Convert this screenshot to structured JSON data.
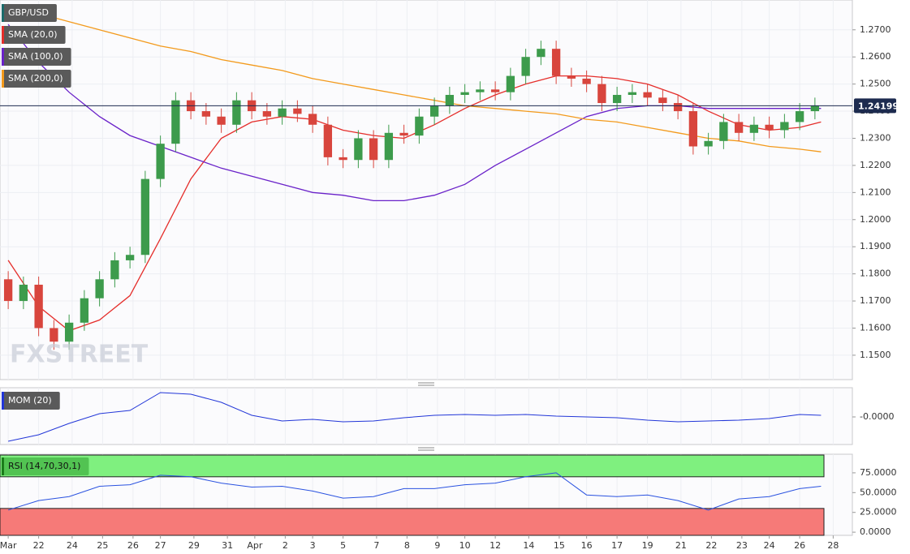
{
  "chart_data": [
    {
      "type": "candlestick",
      "symbol": "GBP/USD",
      "watermark": "FXSTREET",
      "x": [
        0,
        0.5,
        1,
        1.5,
        2,
        2.5,
        3,
        3.5,
        4,
        4.5,
        5,
        5.5,
        6,
        6.5,
        7,
        7.5,
        8,
        8.5,
        9,
        9.5,
        10,
        10.5,
        11,
        11.5,
        12,
        12.5,
        13,
        13.5,
        14,
        14.5,
        15,
        15.5,
        16,
        16.5,
        17,
        17.5,
        18,
        18.5,
        19,
        19.5,
        20,
        20.5,
        21,
        21.5,
        22,
        22.5,
        23,
        23.5,
        24,
        24.5,
        25,
        25.5,
        26,
        26.5
      ],
      "open": [
        1.178,
        1.17,
        1.176,
        1.16,
        1.155,
        1.162,
        1.171,
        1.178,
        1.185,
        1.187,
        1.215,
        1.228,
        1.244,
        1.24,
        1.238,
        1.235,
        1.244,
        1.24,
        1.238,
        1.241,
        1.239,
        1.235,
        1.223,
        1.222,
        1.23,
        1.222,
        1.232,
        1.231,
        1.238,
        1.242,
        1.246,
        1.247,
        1.248,
        1.247,
        1.253,
        1.26,
        1.263,
        1.253,
        1.252,
        1.25,
        1.243,
        1.246,
        1.247,
        1.245,
        1.243,
        1.24,
        1.227,
        1.229,
        1.236,
        1.232,
        1.235,
        1.233,
        1.236,
        1.24
      ],
      "high": [
        1.181,
        1.179,
        1.179,
        1.163,
        1.165,
        1.174,
        1.181,
        1.188,
        1.19,
        1.218,
        1.231,
        1.247,
        1.247,
        1.243,
        1.241,
        1.247,
        1.247,
        1.243,
        1.244,
        1.244,
        1.242,
        1.238,
        1.226,
        1.233,
        1.233,
        1.235,
        1.235,
        1.241,
        1.245,
        1.249,
        1.25,
        1.251,
        1.251,
        1.256,
        1.263,
        1.266,
        1.266,
        1.256,
        1.255,
        1.253,
        1.249,
        1.25,
        1.25,
        1.248,
        1.246,
        1.243,
        1.232,
        1.239,
        1.239,
        1.238,
        1.238,
        1.239,
        1.243,
        1.245
      ],
      "low": [
        1.167,
        1.167,
        1.157,
        1.152,
        1.152,
        1.159,
        1.168,
        1.175,
        1.182,
        1.184,
        1.212,
        1.225,
        1.237,
        1.235,
        1.232,
        1.232,
        1.237,
        1.235,
        1.235,
        1.236,
        1.232,
        1.22,
        1.219,
        1.219,
        1.219,
        1.219,
        1.228,
        1.228,
        1.235,
        1.239,
        1.243,
        1.244,
        1.244,
        1.244,
        1.25,
        1.257,
        1.25,
        1.249,
        1.247,
        1.24,
        1.24,
        1.243,
        1.242,
        1.24,
        1.237,
        1.224,
        1.224,
        1.226,
        1.229,
        1.229,
        1.23,
        1.23,
        1.233,
        1.237
      ],
      "close": [
        1.17,
        1.176,
        1.16,
        1.155,
        1.162,
        1.171,
        1.178,
        1.185,
        1.187,
        1.215,
        1.228,
        1.244,
        1.24,
        1.238,
        1.235,
        1.244,
        1.24,
        1.238,
        1.241,
        1.239,
        1.235,
        1.223,
        1.222,
        1.23,
        1.222,
        1.232,
        1.231,
        1.238,
        1.242,
        1.246,
        1.247,
        1.248,
        1.247,
        1.253,
        1.26,
        1.263,
        1.253,
        1.252,
        1.25,
        1.243,
        1.246,
        1.247,
        1.245,
        1.243,
        1.24,
        1.227,
        1.229,
        1.236,
        1.232,
        1.235,
        1.233,
        1.236,
        1.24,
        1.242
      ],
      "up_color": "#3d9b4c",
      "down_color": "#d8453d",
      "overlays": [
        {
          "name": "SMA (20,0)",
          "color": "#e52d2a",
          "x": [
            0,
            1,
            2,
            3,
            4,
            5,
            6,
            7,
            8,
            9,
            10,
            11,
            12,
            13,
            14,
            15,
            16,
            17,
            18,
            19,
            20,
            21,
            22,
            23,
            24,
            25,
            26,
            26.7
          ],
          "values": [
            1.185,
            1.168,
            1.159,
            1.163,
            1.172,
            1.193,
            1.215,
            1.23,
            1.236,
            1.238,
            1.237,
            1.233,
            1.231,
            1.23,
            1.235,
            1.241,
            1.246,
            1.25,
            1.253,
            1.253,
            1.252,
            1.25,
            1.246,
            1.24,
            1.235,
            1.233,
            1.234,
            1.236
          ]
        },
        {
          "name": "SMA (100,0)",
          "color": "#6a22c9",
          "x": [
            0,
            1,
            2,
            3,
            4,
            5,
            6,
            7,
            8,
            9,
            10,
            11,
            12,
            13,
            14,
            15,
            16,
            17,
            18,
            19,
            20,
            21,
            22,
            23,
            24,
            25,
            26,
            26.7
          ],
          "values": [
            1.272,
            1.258,
            1.247,
            1.238,
            1.231,
            1.227,
            1.223,
            1.219,
            1.216,
            1.213,
            1.21,
            1.209,
            1.207,
            1.207,
            1.209,
            1.213,
            1.22,
            1.226,
            1.232,
            1.238,
            1.241,
            1.242,
            1.242,
            1.241,
            1.241,
            1.241,
            1.241,
            1.241
          ]
        },
        {
          "name": "SMA (200,0)",
          "color": "#f39a1c",
          "x": [
            0,
            1,
            2,
            3,
            4,
            5,
            6,
            7,
            8,
            9,
            10,
            11,
            12,
            13,
            14,
            15,
            16,
            17,
            18,
            19,
            20,
            21,
            22,
            23,
            24,
            25,
            26,
            26.7
          ],
          "values": [
            1.279,
            1.276,
            1.273,
            1.27,
            1.267,
            1.264,
            1.262,
            1.259,
            1.257,
            1.255,
            1.252,
            1.25,
            1.248,
            1.246,
            1.244,
            1.242,
            1.241,
            1.24,
            1.239,
            1.237,
            1.236,
            1.234,
            1.232,
            1.23,
            1.229,
            1.227,
            1.226,
            1.225
          ]
        }
      ],
      "current_price": 1.24199,
      "xlim": [
        -0.27,
        27.73
      ],
      "ylim": [
        1.141,
        1.281
      ],
      "yticks": [
        {
          "value": 1.15,
          "label": "1.1500"
        },
        {
          "value": 1.16,
          "label": "1.1600"
        },
        {
          "value": 1.17,
          "label": "1.1700"
        },
        {
          "value": 1.18,
          "label": "1.1800"
        },
        {
          "value": 1.19,
          "label": "1.1900"
        },
        {
          "value": 1.2,
          "label": "1.2000"
        },
        {
          "value": 1.21,
          "label": "1.2100"
        },
        {
          "value": 1.22,
          "label": "1.2200"
        },
        {
          "value": 1.23,
          "label": "1.2300"
        },
        {
          "value": 1.24,
          "label": "1.2400"
        },
        {
          "value": 1.25,
          "label": "1.2500"
        },
        {
          "value": 1.26,
          "label": "1.2600"
        },
        {
          "value": 1.27,
          "label": "1.2700"
        }
      ],
      "grid": true
    },
    {
      "type": "line",
      "name": "MOM (20)",
      "color": "#2236d8",
      "x": [
        0,
        1,
        2,
        3,
        4,
        5,
        6,
        7,
        8,
        9,
        10,
        11,
        12,
        13,
        14,
        15,
        16,
        17,
        18,
        19,
        20,
        21,
        22,
        23,
        24,
        25,
        26,
        26.7
      ],
      "values": [
        -0.03,
        -0.022,
        -0.008,
        0.004,
        0.008,
        0.03,
        0.028,
        0.018,
        0.002,
        -0.005,
        -0.003,
        -0.006,
        -0.005,
        -0.001,
        0.002,
        0.003,
        0.002,
        0.003,
        0.001,
        0.0,
        -0.001,
        -0.004,
        -0.006,
        -0.005,
        -0.004,
        -0.002,
        0.003,
        0.002
      ],
      "xlim": [
        -0.27,
        27.73
      ],
      "ylim": [
        -0.034,
        0.036
      ],
      "yticks": [
        {
          "value": 0,
          "label": "-0.0000"
        }
      ]
    },
    {
      "type": "line",
      "name": "RSI (14,70,30,1)",
      "color": "#2a52e0",
      "x": [
        0,
        1,
        2,
        3,
        4,
        5,
        6,
        7,
        8,
        9,
        10,
        11,
        12,
        13,
        14,
        15,
        16,
        17,
        18,
        19,
        20,
        21,
        22,
        23,
        24,
        25,
        26,
        26.7
      ],
      "values": [
        28,
        40,
        45,
        58,
        60,
        72,
        70,
        62,
        57,
        58,
        52,
        43,
        45,
        55,
        55,
        60,
        62,
        70,
        75,
        47,
        45,
        47,
        40,
        28,
        42,
        45,
        55,
        58
      ],
      "overbought": 70,
      "oversold": 30,
      "overbought_color": "#7ff07f",
      "oversold_color": "#f67a78",
      "xlim": [
        -0.27,
        27.73
      ],
      "ylim": [
        -4,
        98.5
      ],
      "yticks": [
        {
          "value": 0,
          "label": "0.0000"
        },
        {
          "value": 25,
          "label": "25.0000"
        },
        {
          "value": 50,
          "label": "50.0000"
        },
        {
          "value": 75,
          "label": "75.0000"
        }
      ],
      "xticks": [
        {
          "value": 0,
          "label": "Mar"
        },
        {
          "value": 1.0,
          "label": "22"
        },
        {
          "value": 2.1,
          "label": "24"
        },
        {
          "value": 3.1,
          "label": "25"
        },
        {
          "value": 4.1,
          "label": "26"
        },
        {
          "value": 5.0,
          "label": "27"
        },
        {
          "value": 6.1,
          "label": "29"
        },
        {
          "value": 7.2,
          "label": "31"
        },
        {
          "value": 8.1,
          "label": "Apr"
        },
        {
          "value": 9.1,
          "label": "2"
        },
        {
          "value": 10.0,
          "label": "3"
        },
        {
          "value": 11.0,
          "label": "5"
        },
        {
          "value": 12.1,
          "label": "7"
        },
        {
          "value": 13.1,
          "label": "8"
        },
        {
          "value": 14.1,
          "label": "9"
        },
        {
          "value": 15.0,
          "label": "10"
        },
        {
          "value": 16.0,
          "label": "12"
        },
        {
          "value": 17.1,
          "label": "14"
        },
        {
          "value": 18.1,
          "label": "15"
        },
        {
          "value": 19.0,
          "label": "16"
        },
        {
          "value": 20.0,
          "label": "17"
        },
        {
          "value": 21.0,
          "label": "19"
        },
        {
          "value": 22.1,
          "label": "21"
        },
        {
          "value": 23.1,
          "label": "22"
        },
        {
          "value": 24.1,
          "label": "23"
        },
        {
          "value": 25.0,
          "label": "24"
        },
        {
          "value": 26.0,
          "label": "26"
        },
        {
          "value": 27.1,
          "label": "28"
        }
      ]
    }
  ]
}
